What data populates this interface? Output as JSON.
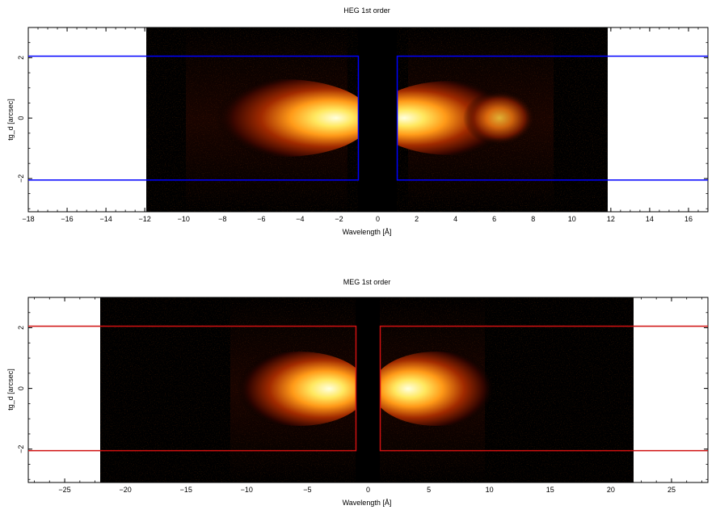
{
  "chart_data": [
    {
      "type": "heatmap",
      "title": "HEG 1st order",
      "xlabel": "Wavelength [Å]",
      "ylabel": "tg_d [arcsec]",
      "xlim": [
        -18,
        17
      ],
      "ylim": [
        -3.1,
        3
      ],
      "x_ticks": [
        -18,
        -16,
        -14,
        -12,
        -10,
        -8,
        -6,
        -4,
        -2,
        0,
        2,
        4,
        6,
        8,
        10,
        12,
        14,
        16
      ],
      "y_ticks": [
        -2,
        0,
        2
      ],
      "data_extent_x": [
        -11.9,
        11.9
      ],
      "data_gap_x": [
        -1,
        1
      ],
      "colormap": "heat",
      "peaks": [
        {
          "x_range": [
            -8,
            -1.2
          ],
          "center": -2.8,
          "rel_intensity": 1.0
        },
        {
          "x_range": [
            1.2,
            7.5
          ],
          "center": 2.8,
          "rel_intensity": 1.0
        },
        {
          "x_range": [
            4.5,
            7
          ],
          "center": 6.2,
          "rel_intensity": 0.7
        }
      ],
      "extraction_regions": [
        {
          "x": [
            -18,
            -1
          ],
          "y": [
            -2.05,
            2.05
          ]
        },
        {
          "x": [
            1,
            17
          ],
          "y": [
            -2.05,
            2.05
          ]
        }
      ],
      "region_color": "#0000ff"
    },
    {
      "type": "heatmap",
      "title": "MEG 1st order",
      "xlabel": "Wavelength [Å]",
      "ylabel": "tg_d [arcsec]",
      "xlim": [
        -28,
        28
      ],
      "ylim": [
        -3.1,
        3
      ],
      "x_ticks": [
        -25,
        -20,
        -15,
        -10,
        -5,
        0,
        5,
        10,
        15,
        20,
        25
      ],
      "y_ticks": [
        -2,
        0,
        2
      ],
      "data_extent_x": [
        -22,
        22
      ],
      "data_gap_x": [
        -1,
        1
      ],
      "colormap": "heat",
      "peaks": [
        {
          "x_range": [
            -9,
            -1.5
          ],
          "center": -3.5,
          "rel_intensity": 1.0
        },
        {
          "x_range": [
            1.5,
            9.5
          ],
          "center": 3.5,
          "rel_intensity": 1.0
        }
      ],
      "extraction_regions": [
        {
          "x": [
            -28,
            -1
          ],
          "y": [
            -2.05,
            2.05
          ]
        },
        {
          "x": [
            1,
            28
          ],
          "y": [
            -2.05,
            2.05
          ]
        }
      ],
      "region_color": "#d01010"
    }
  ]
}
